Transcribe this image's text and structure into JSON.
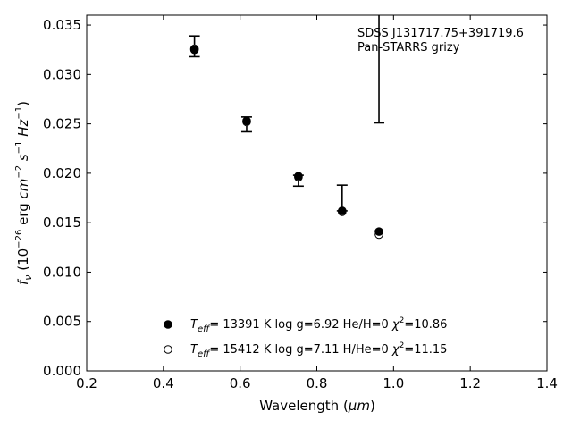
{
  "chart_data": {
    "type": "scatter",
    "annotation": {
      "line1": "SDSS J131717.75+391719.6",
      "line2": "Pan-STARRS grizy"
    },
    "xlabel": {
      "main": "Wavelength (",
      "unit": "μm",
      "close": ")"
    },
    "ylabel": {
      "f": "f",
      "fsub": "ν",
      "open": " (10",
      "exp": "−26",
      "erg": " erg ",
      "cm": "cm",
      "cmexp": "−2",
      "s": " s",
      "sexp": "−1",
      "hz": " Hz",
      "hzexp": "−1",
      "close": ")"
    },
    "xlim": [
      0.2,
      1.4
    ],
    "ylim": [
      0.0,
      0.036
    ],
    "xticks": [
      0.2,
      0.4,
      0.6,
      0.8,
      1.0,
      1.2,
      1.4
    ],
    "xtick_labels": [
      "0.2",
      "0.4",
      "0.6",
      "0.8",
      "1.0",
      "1.2",
      "1.4"
    ],
    "yticks": [
      0.0,
      0.005,
      0.01,
      0.015,
      0.02,
      0.025,
      0.03,
      0.035
    ],
    "ytick_labels": [
      "0.000",
      "0.005",
      "0.010",
      "0.015",
      "0.020",
      "0.025",
      "0.030",
      "0.035"
    ],
    "observed": {
      "x": [
        0.481,
        0.617,
        0.752,
        0.866,
        0.962
      ],
      "y_low": [
        0.0318,
        0.0242,
        0.0187,
        0.0162,
        0.0251
      ],
      "y_high": [
        0.0339,
        0.0257,
        0.0198,
        0.0188,
        0.036
      ]
    },
    "series": [
      {
        "style": "filled",
        "x": [
          0.481,
          0.617,
          0.752,
          0.866,
          0.962
        ],
        "y": [
          0.0325,
          0.0253,
          0.0197,
          0.0162,
          0.0141
        ]
      },
      {
        "style": "open",
        "x": [
          0.481,
          0.617,
          0.752,
          0.866,
          0.962
        ],
        "y": [
          0.0326,
          0.0252,
          0.0196,
          0.0161,
          0.0138
        ]
      }
    ],
    "legend": {
      "placement": "lower-center",
      "entries": [
        {
          "teff_label": "T",
          "teff_sub": "eff",
          "rest": "= 13391 K  log g=6.92  He/H=0  ",
          "chi": "χ",
          "chi_exp": "2",
          "chi_val": "=10.86"
        },
        {
          "teff_label": "T",
          "teff_sub": "eff",
          "rest": "= 15412 K  log g=7.11  H/He=0  ",
          "chi": "χ",
          "chi_exp": "2",
          "chi_val": "=11.15"
        }
      ]
    },
    "grid": false
  }
}
